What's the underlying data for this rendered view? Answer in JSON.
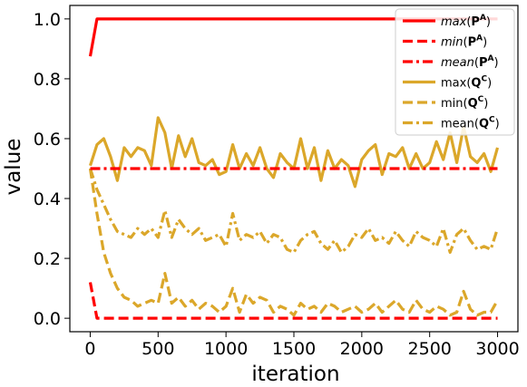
{
  "chart_data": {
    "type": "line",
    "xlabel": "iteration",
    "ylabel": "value",
    "xlim": [
      -150,
      3150
    ],
    "ylim": [
      -0.045,
      1.045
    ],
    "xticks": [
      0,
      500,
      1000,
      1500,
      2000,
      2500,
      3000
    ],
    "yticks": [
      0.0,
      0.2,
      0.4,
      0.6,
      0.8,
      1.0
    ],
    "grid": false,
    "legend_position": "top-right",
    "series": [
      {
        "name": "max(P^A)",
        "legend": {
          "fn": "max",
          "sym": "P",
          "sup": "A",
          "italic": true
        },
        "color": "#ff0000",
        "dash": "solid",
        "x": [
          0,
          50,
          3000
        ],
        "y": [
          0.875,
          1.0,
          1.0
        ]
      },
      {
        "name": "min(P^A)",
        "legend": {
          "fn": "min",
          "sym": "P",
          "sup": "A",
          "italic": true
        },
        "color": "#ff0000",
        "dash": "dashed",
        "x": [
          0,
          50,
          3000
        ],
        "y": [
          0.12,
          0.0,
          0.0
        ]
      },
      {
        "name": "mean(P^A)",
        "legend": {
          "fn": "mean",
          "sym": "P",
          "sup": "A",
          "italic": true
        },
        "color": "#ff0000",
        "dash": "dashdot",
        "x": [
          0,
          3000
        ],
        "y": [
          0.5,
          0.5
        ]
      },
      {
        "name": "max(Q^C)",
        "legend": {
          "fn": "max",
          "sym": "Q",
          "sup": "C",
          "italic": false
        },
        "color": "#dba72a",
        "dash": "solid",
        "x": [
          0,
          50,
          100,
          150,
          200,
          250,
          300,
          350,
          400,
          450,
          500,
          550,
          600,
          650,
          700,
          750,
          800,
          850,
          900,
          950,
          1000,
          1050,
          1100,
          1150,
          1200,
          1250,
          1300,
          1350,
          1400,
          1450,
          1500,
          1550,
          1600,
          1650,
          1700,
          1750,
          1800,
          1850,
          1900,
          1950,
          2000,
          2050,
          2100,
          2150,
          2200,
          2250,
          2300,
          2350,
          2400,
          2450,
          2500,
          2550,
          2600,
          2650,
          2700,
          2750,
          2800,
          2850,
          2900,
          2950,
          3000
        ],
        "y": [
          0.51,
          0.58,
          0.6,
          0.54,
          0.46,
          0.57,
          0.54,
          0.57,
          0.56,
          0.51,
          0.67,
          0.62,
          0.5,
          0.61,
          0.54,
          0.6,
          0.52,
          0.51,
          0.53,
          0.48,
          0.49,
          0.58,
          0.5,
          0.55,
          0.51,
          0.57,
          0.5,
          0.47,
          0.55,
          0.52,
          0.5,
          0.6,
          0.5,
          0.57,
          0.46,
          0.56,
          0.5,
          0.53,
          0.51,
          0.44,
          0.53,
          0.56,
          0.58,
          0.48,
          0.55,
          0.54,
          0.57,
          0.5,
          0.55,
          0.5,
          0.52,
          0.59,
          0.53,
          0.62,
          0.52,
          0.64,
          0.54,
          0.52,
          0.55,
          0.49,
          0.57
        ]
      },
      {
        "name": "min(Q^C)",
        "legend": {
          "fn": "min",
          "sym": "Q",
          "sup": "C",
          "italic": false
        },
        "color": "#dba72a",
        "dash": "dashed",
        "x": [
          0,
          50,
          100,
          150,
          200,
          250,
          300,
          350,
          400,
          450,
          500,
          550,
          600,
          650,
          700,
          750,
          800,
          850,
          900,
          950,
          1000,
          1050,
          1100,
          1150,
          1200,
          1250,
          1300,
          1350,
          1400,
          1450,
          1500,
          1550,
          1600,
          1650,
          1700,
          1750,
          1800,
          1850,
          1900,
          1950,
          2000,
          2050,
          2100,
          2150,
          2200,
          2250,
          2300,
          2350,
          2400,
          2450,
          2500,
          2550,
          2600,
          2650,
          2700,
          2750,
          2800,
          2850,
          2900,
          2950,
          3000
        ],
        "y": [
          0.5,
          0.35,
          0.22,
          0.15,
          0.1,
          0.07,
          0.06,
          0.04,
          0.05,
          0.06,
          0.05,
          0.15,
          0.05,
          0.07,
          0.04,
          0.06,
          0.03,
          0.05,
          0.04,
          0.02,
          0.04,
          0.1,
          0.02,
          0.08,
          0.05,
          0.07,
          0.06,
          0.02,
          0.04,
          0.03,
          0.01,
          0.05,
          0.03,
          0.04,
          0.02,
          0.05,
          0.04,
          0.02,
          0.03,
          0.04,
          0.02,
          0.03,
          0.05,
          0.02,
          0.04,
          0.06,
          0.03,
          0.02,
          0.06,
          0.03,
          0.02,
          0.04,
          0.03,
          0.01,
          0.02,
          0.09,
          0.03,
          0.01,
          0.02,
          0.02,
          0.06
        ]
      },
      {
        "name": "mean(Q^C)",
        "legend": {
          "fn": "mean",
          "sym": "Q",
          "sup": "C",
          "italic": false
        },
        "color": "#dba72a",
        "dash": "dashdot",
        "x": [
          0,
          50,
          100,
          150,
          200,
          250,
          300,
          350,
          400,
          450,
          500,
          550,
          600,
          650,
          700,
          750,
          800,
          850,
          900,
          950,
          1000,
          1050,
          1100,
          1150,
          1200,
          1250,
          1300,
          1350,
          1400,
          1450,
          1500,
          1550,
          1600,
          1650,
          1700,
          1750,
          1800,
          1850,
          1900,
          1950,
          2000,
          2050,
          2100,
          2150,
          2200,
          2250,
          2300,
          2350,
          2400,
          2450,
          2500,
          2550,
          2600,
          2650,
          2700,
          2750,
          2800,
          2850,
          2900,
          2950,
          3000
        ],
        "y": [
          0.5,
          0.43,
          0.38,
          0.33,
          0.29,
          0.28,
          0.27,
          0.3,
          0.28,
          0.3,
          0.27,
          0.36,
          0.27,
          0.33,
          0.3,
          0.28,
          0.3,
          0.26,
          0.27,
          0.28,
          0.24,
          0.35,
          0.26,
          0.28,
          0.27,
          0.29,
          0.25,
          0.28,
          0.27,
          0.23,
          0.22,
          0.26,
          0.28,
          0.29,
          0.25,
          0.23,
          0.26,
          0.22,
          0.24,
          0.28,
          0.27,
          0.3,
          0.26,
          0.27,
          0.25,
          0.29,
          0.26,
          0.24,
          0.29,
          0.27,
          0.26,
          0.24,
          0.3,
          0.22,
          0.28,
          0.3,
          0.26,
          0.23,
          0.24,
          0.23,
          0.3
        ]
      }
    ]
  }
}
